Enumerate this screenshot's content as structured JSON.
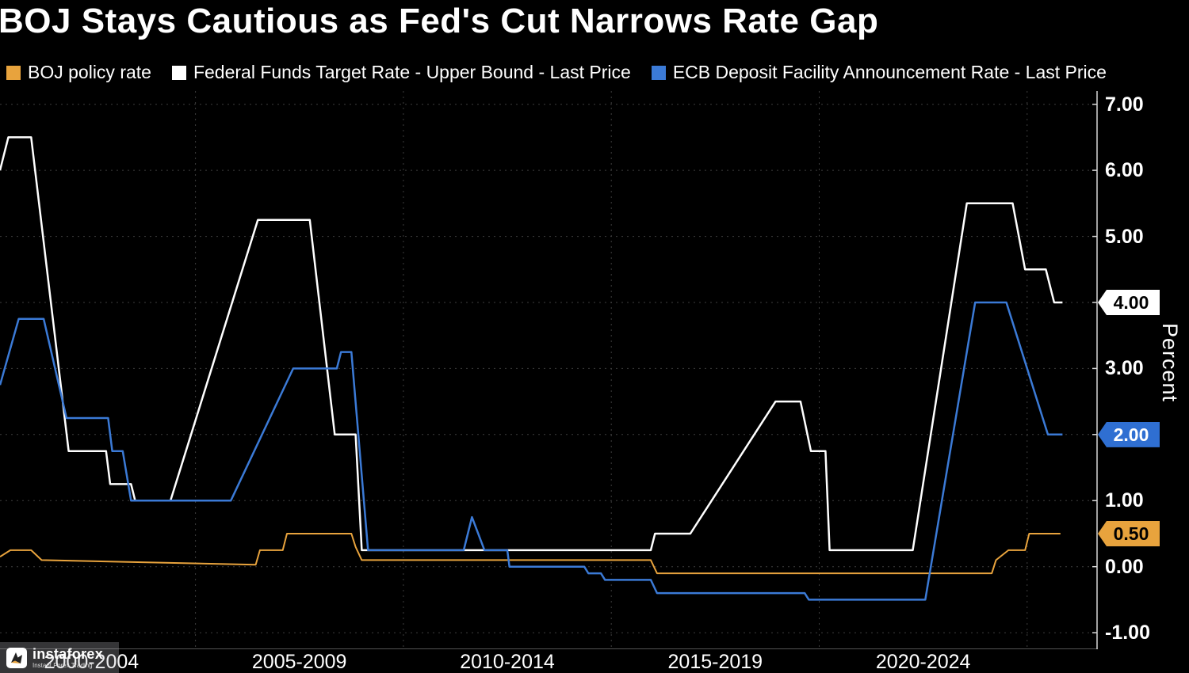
{
  "title": "BOJ Stays Cautious as Fed's Cut Narrows Rate Gap",
  "legend": {
    "items": [
      {
        "id": "boj",
        "label": "BOJ policy rate",
        "color": "#e8a33d"
      },
      {
        "id": "fed",
        "label": "Federal Funds Target Rate - Upper Bound - Last Price",
        "color": "#ffffff"
      },
      {
        "id": "ecb",
        "label": "ECB Deposit Facility Announcement Rate - Last Price",
        "color": "#3b7ad6"
      }
    ]
  },
  "watermark": {
    "brand": "instaforex",
    "tagline": "Instant Forex Trading"
  },
  "chart_data": {
    "type": "line",
    "title": "BOJ Stays Cautious as Fed's Cut Narrows Rate Gap",
    "xlabel": "",
    "ylabel": "Percent",
    "grid": true,
    "legend_position": "top",
    "xlim": [
      2000.3,
      2026.7
    ],
    "ylim": [
      -1.25,
      7.2
    ],
    "xgrid": [
      2005,
      2010,
      2015,
      2020,
      2025
    ],
    "ygrid": [
      -1,
      0,
      1,
      2,
      3,
      4,
      5,
      6,
      7
    ],
    "xticks": [
      {
        "center": 2002.5,
        "label": "2000-2004"
      },
      {
        "center": 2007.5,
        "label": "2005-2009"
      },
      {
        "center": 2012.5,
        "label": "2010-2014"
      },
      {
        "center": 2017.5,
        "label": "2015-2019"
      },
      {
        "center": 2022.5,
        "label": "2020-2024"
      }
    ],
    "yticks": [
      {
        "value": 7,
        "label": "7.00",
        "style": "plain"
      },
      {
        "value": 6,
        "label": "6.00",
        "style": "plain"
      },
      {
        "value": 5,
        "label": "5.00",
        "style": "plain"
      },
      {
        "value": 4,
        "label": "4.00",
        "style": "badge",
        "bg": "#ffffff",
        "fg": "#000000"
      },
      {
        "value": 3,
        "label": "3.00",
        "style": "plain"
      },
      {
        "value": 2,
        "label": "2.00",
        "style": "badge",
        "bg": "#2f6fd2",
        "fg": "#ffffff"
      },
      {
        "value": 1,
        "label": "1.00",
        "style": "plain"
      },
      {
        "value": 0.5,
        "label": "0.50",
        "style": "badge",
        "bg": "#e8a33d",
        "fg": "#000000"
      },
      {
        "value": 0,
        "label": "0.00",
        "style": "plain"
      },
      {
        "value": -1,
        "label": "-1.00",
        "style": "plain"
      }
    ],
    "series": [
      {
        "id": "boj",
        "name": "BOJ policy rate",
        "color": "#e8a33d",
        "width": 2,
        "points": [
          [
            2000.3,
            0.15
          ],
          [
            2000.55,
            0.25
          ],
          [
            2001.05,
            0.25
          ],
          [
            2001.3,
            0.1
          ],
          [
            2006.45,
            0.03
          ],
          [
            2006.55,
            0.25
          ],
          [
            2007.1,
            0.25
          ],
          [
            2007.2,
            0.5
          ],
          [
            2008.75,
            0.5
          ],
          [
            2008.85,
            0.3
          ],
          [
            2009.0,
            0.1
          ],
          [
            2015.95,
            0.1
          ],
          [
            2016.1,
            -0.1
          ],
          [
            2024.15,
            -0.1
          ],
          [
            2024.25,
            0.1
          ],
          [
            2024.55,
            0.25
          ],
          [
            2024.95,
            0.25
          ],
          [
            2025.05,
            0.5
          ],
          [
            2025.8,
            0.5
          ]
        ]
      },
      {
        "id": "fed",
        "name": "Federal Funds Target Rate - Upper Bound - Last Price",
        "color": "#ffffff",
        "width": 2.5,
        "points": [
          [
            2000.3,
            6.0
          ],
          [
            2000.5,
            6.5
          ],
          [
            2001.05,
            6.5
          ],
          [
            2001.95,
            1.75
          ],
          [
            2002.85,
            1.75
          ],
          [
            2002.95,
            1.25
          ],
          [
            2003.45,
            1.25
          ],
          [
            2003.55,
            1.0
          ],
          [
            2004.4,
            1.0
          ],
          [
            2006.5,
            5.25
          ],
          [
            2007.75,
            5.25
          ],
          [
            2008.35,
            2.0
          ],
          [
            2008.85,
            2.0
          ],
          [
            2009.0,
            0.25
          ],
          [
            2015.95,
            0.25
          ],
          [
            2016.05,
            0.5
          ],
          [
            2016.9,
            0.5
          ],
          [
            2018.95,
            2.5
          ],
          [
            2019.55,
            2.5
          ],
          [
            2019.8,
            1.75
          ],
          [
            2020.15,
            1.75
          ],
          [
            2020.25,
            0.25
          ],
          [
            2022.25,
            0.25
          ],
          [
            2023.55,
            5.5
          ],
          [
            2024.65,
            5.5
          ],
          [
            2024.95,
            4.5
          ],
          [
            2025.45,
            4.5
          ],
          [
            2025.65,
            4.0
          ],
          [
            2025.85,
            4.0
          ]
        ]
      },
      {
        "id": "ecb",
        "name": "ECB Deposit Facility Announcement Rate - Last Price",
        "color": "#3b7ad6",
        "width": 2.5,
        "points": [
          [
            2000.3,
            2.75
          ],
          [
            2000.75,
            3.75
          ],
          [
            2001.35,
            3.75
          ],
          [
            2001.9,
            2.25
          ],
          [
            2002.9,
            2.25
          ],
          [
            2003.0,
            1.75
          ],
          [
            2003.25,
            1.75
          ],
          [
            2003.45,
            1.0
          ],
          [
            2005.85,
            1.0
          ],
          [
            2007.35,
            3.0
          ],
          [
            2008.4,
            3.0
          ],
          [
            2008.5,
            3.25
          ],
          [
            2008.75,
            3.25
          ],
          [
            2009.15,
            0.25
          ],
          [
            2011.45,
            0.25
          ],
          [
            2011.65,
            0.75
          ],
          [
            2011.95,
            0.25
          ],
          [
            2012.5,
            0.25
          ],
          [
            2012.55,
            0.0
          ],
          [
            2014.35,
            0.0
          ],
          [
            2014.45,
            -0.1
          ],
          [
            2014.75,
            -0.1
          ],
          [
            2014.85,
            -0.2
          ],
          [
            2015.95,
            -0.2
          ],
          [
            2016.1,
            -0.4
          ],
          [
            2019.65,
            -0.4
          ],
          [
            2019.75,
            -0.5
          ],
          [
            2022.55,
            -0.5
          ],
          [
            2023.75,
            4.0
          ],
          [
            2024.5,
            4.0
          ],
          [
            2025.5,
            2.0
          ],
          [
            2025.85,
            2.0
          ]
        ]
      }
    ]
  }
}
